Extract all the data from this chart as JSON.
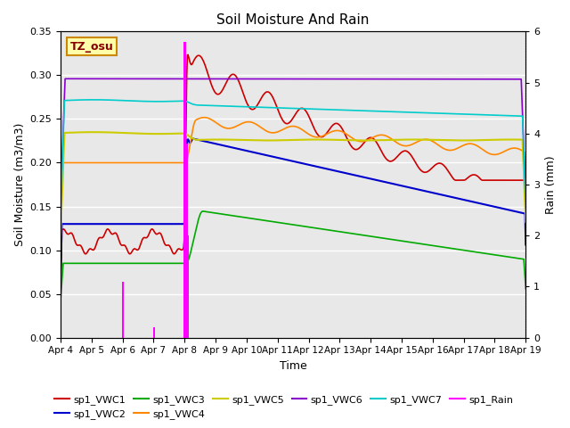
{
  "title": "Soil Moisture And Rain",
  "xlabel": "Time",
  "ylabel_left": "Soil Moisture (m3/m3)",
  "ylabel_right": "Rain (mm)",
  "site_label": "TZ_osu",
  "ylim_left": [
    0,
    0.35
  ],
  "ylim_right": [
    0.0,
    6.0
  ],
  "x_tick_labels": [
    "Apr 4",
    "Apr 5",
    "Apr 6",
    "Apr 7",
    "Apr 8",
    "Apr 9",
    "Apr 10",
    "Apr 11",
    "Apr 12",
    "Apr 13",
    "Apr 14",
    "Apr 15",
    "Apr 16",
    "Apr 17",
    "Apr 18",
    "Apr 19"
  ],
  "colors": {
    "VWC1": "#cc0000",
    "VWC2": "#0000cc",
    "VWC3": "#00aa00",
    "VWC4": "#ff8800",
    "VWC5": "#cccc00",
    "VWC6": "#8800cc",
    "VWC7": "#00cccc",
    "Rain": "#ff00ff"
  },
  "background_color": "#e8e8e8"
}
